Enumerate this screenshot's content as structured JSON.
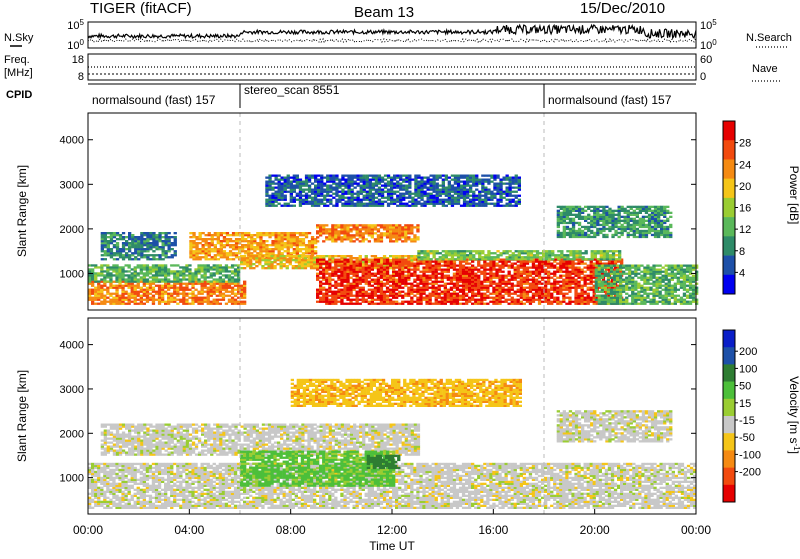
{
  "header": {
    "radar": "TIGER (fitACF)",
    "beam": "Beam 13",
    "date": "15/Dec/2010"
  },
  "nsky_panel": {
    "left_label": "N.Sky",
    "right_label": "N.Search",
    "left_ticks": [
      "10^5",
      "10^0"
    ],
    "right_ticks": [
      "10^5",
      "10^0"
    ]
  },
  "freq_panel": {
    "left_label_line1": "Freq.",
    "left_label_line2": "[MHz]",
    "right_label": "Nave",
    "left_ticks": [
      "18",
      "8"
    ],
    "right_ticks": [
      "60",
      "0"
    ]
  },
  "cpid_panel": {
    "label": "CPID",
    "segments": [
      {
        "name": "normalsound (fast) 157",
        "start_hour": 0
      },
      {
        "name": "stereo_scan 8551",
        "start_hour": 6
      },
      {
        "name": "normalsound (fast) 157",
        "start_hour": 18
      }
    ]
  },
  "time_axis": {
    "label": "Time UT",
    "ticks": [
      "00:00",
      "04:00",
      "08:00",
      "12:00",
      "16:00",
      "20:00",
      "00:00"
    ]
  },
  "chart_data": [
    {
      "type": "heatmap",
      "title": "",
      "xlabel": "Time UT",
      "ylabel": "Slant Range [km]",
      "x_range_hours": [
        0,
        24
      ],
      "ylim": [
        180,
        4600
      ],
      "y_ticks": [
        "1000",
        "2000",
        "3000",
        "4000"
      ],
      "y_tick_values": [
        1000,
        2000,
        3000,
        4000
      ],
      "colorbar_label": "Power [dB]",
      "colorbar_ticks": [
        "4",
        "8",
        "12",
        "16",
        "20",
        "24",
        "28"
      ],
      "colorbar_tick_values": [
        4,
        8,
        12,
        16,
        20,
        24,
        28
      ],
      "colorbar_range": [
        0,
        32
      ],
      "colors": [
        "#0000f0",
        "#1d50a8",
        "#2e8b68",
        "#5ab85a",
        "#9acd32",
        "#f5c518",
        "#f58a12",
        "#f24a0e",
        "#e60000"
      ],
      "regions": [
        {
          "t0": 0,
          "t1": 6.2,
          "r0": 300,
          "r1": 800,
          "level": 24
        },
        {
          "t0": 0,
          "t1": 6.0,
          "r0": 800,
          "r1": 1200,
          "level": 12
        },
        {
          "t0": 0.5,
          "t1": 3.5,
          "r0": 1300,
          "r1": 1900,
          "level": 8
        },
        {
          "t0": 4,
          "t1": 9,
          "r0": 1300,
          "r1": 1900,
          "level": 22
        },
        {
          "t0": 9,
          "t1": 13,
          "r0": 1700,
          "r1": 2100,
          "level": 24
        },
        {
          "t0": 6,
          "t1": 13,
          "r0": 1100,
          "r1": 1400,
          "level": 20
        },
        {
          "t0": 9,
          "t1": 21,
          "r0": 300,
          "r1": 1300,
          "level": 28
        },
        {
          "t0": 13,
          "t1": 21,
          "r0": 1300,
          "r1": 1500,
          "level": 14
        },
        {
          "t0": 20,
          "t1": 24,
          "r0": 300,
          "r1": 1200,
          "level": 12
        },
        {
          "t0": 7,
          "t1": 17,
          "r0": 2500,
          "r1": 3200,
          "level": 6
        },
        {
          "t0": 18.5,
          "t1": 23,
          "r0": 1800,
          "r1": 2500,
          "level": 10
        }
      ]
    },
    {
      "type": "heatmap",
      "title": "",
      "xlabel": "Time UT",
      "ylabel": "Slant Range [km]",
      "x_range_hours": [
        0,
        24
      ],
      "ylim": [
        180,
        4600
      ],
      "y_ticks": [
        "1000",
        "2000",
        "3000",
        "4000"
      ],
      "y_tick_values": [
        1000,
        2000,
        3000,
        4000
      ],
      "colorbar_label": "Velocity [m s^-1]",
      "colorbar_ticks": [
        "200",
        "100",
        "50",
        "15",
        "-15",
        "-50",
        "-100",
        "-200"
      ],
      "colorbar_tick_values": [
        200,
        100,
        50,
        15,
        -15,
        -50,
        -100,
        -200
      ],
      "colors": [
        "#e60000",
        "#f24a0e",
        "#f58a12",
        "#f5c518",
        "#c8c8c8",
        "#9acd32",
        "#4cbf3a",
        "#2e7d32",
        "#1d50a8",
        "#0a1ec8"
      ],
      "regions": [
        {
          "t0": 0,
          "t1": 24,
          "r0": 300,
          "r1": 1300,
          "level": 0
        },
        {
          "t0": 0.5,
          "t1": 13,
          "r0": 1500,
          "r1": 2200,
          "level": 0
        },
        {
          "t0": 6,
          "t1": 12,
          "r0": 800,
          "r1": 1600,
          "level": 60
        },
        {
          "t0": 11,
          "t1": 12.2,
          "r0": 1200,
          "r1": 1500,
          "level": 150
        },
        {
          "t0": 8,
          "t1": 17,
          "r0": 2600,
          "r1": 3200,
          "level": -40
        },
        {
          "t0": 18.5,
          "t1": 23,
          "r0": 1800,
          "r1": 2500,
          "level": 0
        }
      ]
    }
  ]
}
